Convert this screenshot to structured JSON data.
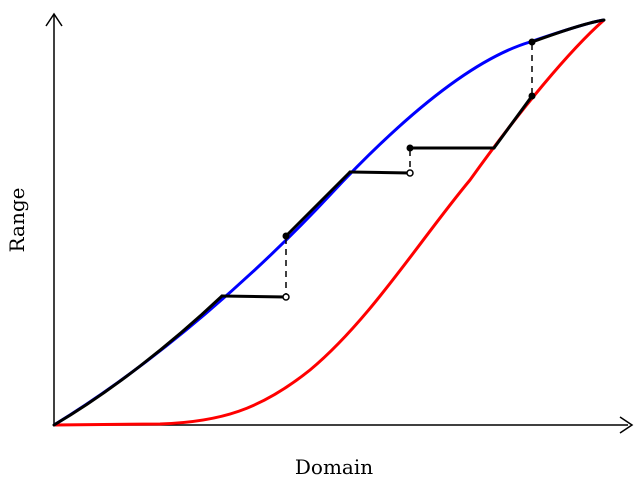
{
  "chart_data": {
    "type": "line",
    "xlabel": "Domain",
    "ylabel": "Range",
    "series_colors": {
      "upper_curve": "#0000ff",
      "lower_curve": "#ff0000",
      "piecewise_function": "#000000"
    }
  }
}
